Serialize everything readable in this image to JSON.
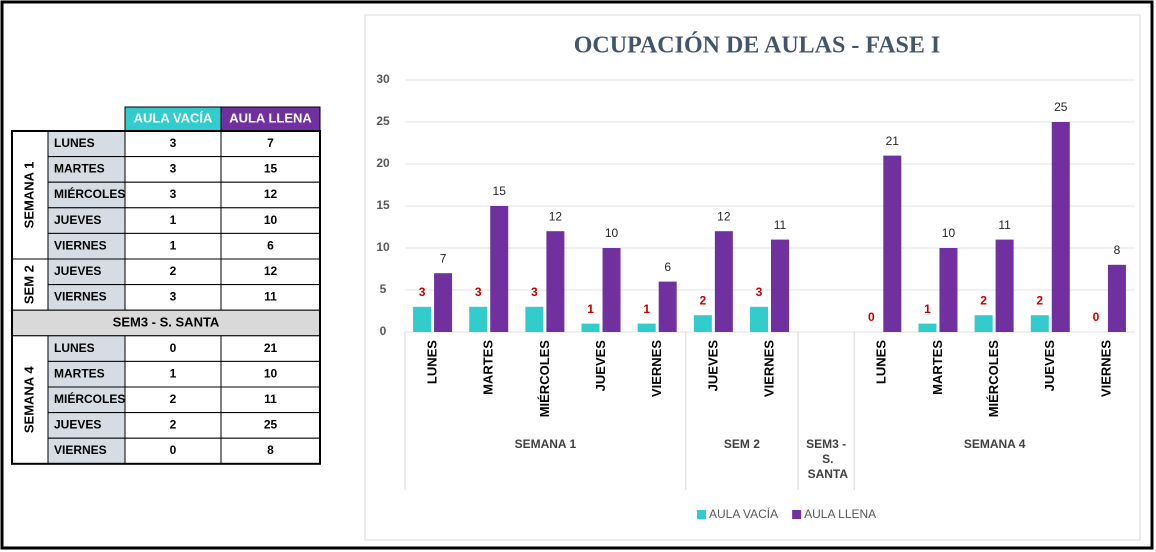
{
  "table": {
    "columns": [
      "AULA VACÍA",
      "AULA LLENA"
    ],
    "groups": [
      {
        "name": "SEMANA 1",
        "rows": [
          [
            "LUNES",
            3,
            7
          ],
          [
            "MARTES",
            3,
            15
          ],
          [
            "MIÉRCOLES",
            3,
            12
          ],
          [
            "JUEVES",
            1,
            10
          ],
          [
            "VIERNES",
            1,
            6
          ]
        ]
      },
      {
        "name": "SEM 2",
        "rows": [
          [
            "JUEVES",
            2,
            12
          ],
          [
            "VIERNES",
            3,
            11
          ]
        ]
      },
      {
        "name": "SEM3 - S. SANTA",
        "rows": []
      },
      {
        "name": "SEMANA 4",
        "rows": [
          [
            "LUNES",
            0,
            21
          ],
          [
            "MARTES",
            1,
            10
          ],
          [
            "MIÉRCOLES",
            2,
            11
          ],
          [
            "JUEVES",
            2,
            25
          ],
          [
            "VIERNES",
            0,
            8
          ]
        ]
      }
    ]
  },
  "chart_data": {
    "type": "bar",
    "title": "OCUPACIÓN DE AULAS - FASE I",
    "groups": [
      {
        "name": "SEMANA 1",
        "categories": [
          "LUNES",
          "MARTES",
          "MIÉRCOLES",
          "JUEVES",
          "VIERNES"
        ]
      },
      {
        "name": "SEM 2",
        "categories": [
          "JUEVES",
          "VIERNES"
        ]
      },
      {
        "name": "SEM3 - S. SANTA",
        "categories": [
          null
        ]
      },
      {
        "name": "SEMANA 4",
        "categories": [
          "LUNES",
          "MARTES",
          "MIÉRCOLES",
          "JUEVES",
          "VIERNES"
        ]
      }
    ],
    "series": [
      {
        "name": "AULA VACÍA",
        "color": "#33cccc",
        "label_color": "#c00000",
        "values": [
          3,
          3,
          3,
          1,
          1,
          2,
          3,
          null,
          0,
          1,
          2,
          2,
          0
        ]
      },
      {
        "name": "AULA LLENA",
        "color": "#7030a0",
        "label_color": "#262626",
        "values": [
          7,
          15,
          12,
          10,
          6,
          12,
          11,
          null,
          21,
          10,
          11,
          25,
          8
        ]
      }
    ],
    "ylim": [
      0,
      30
    ],
    "yticks": [
      0,
      5,
      10,
      15,
      20,
      25,
      30
    ],
    "grid": true,
    "legend": "bottom"
  }
}
